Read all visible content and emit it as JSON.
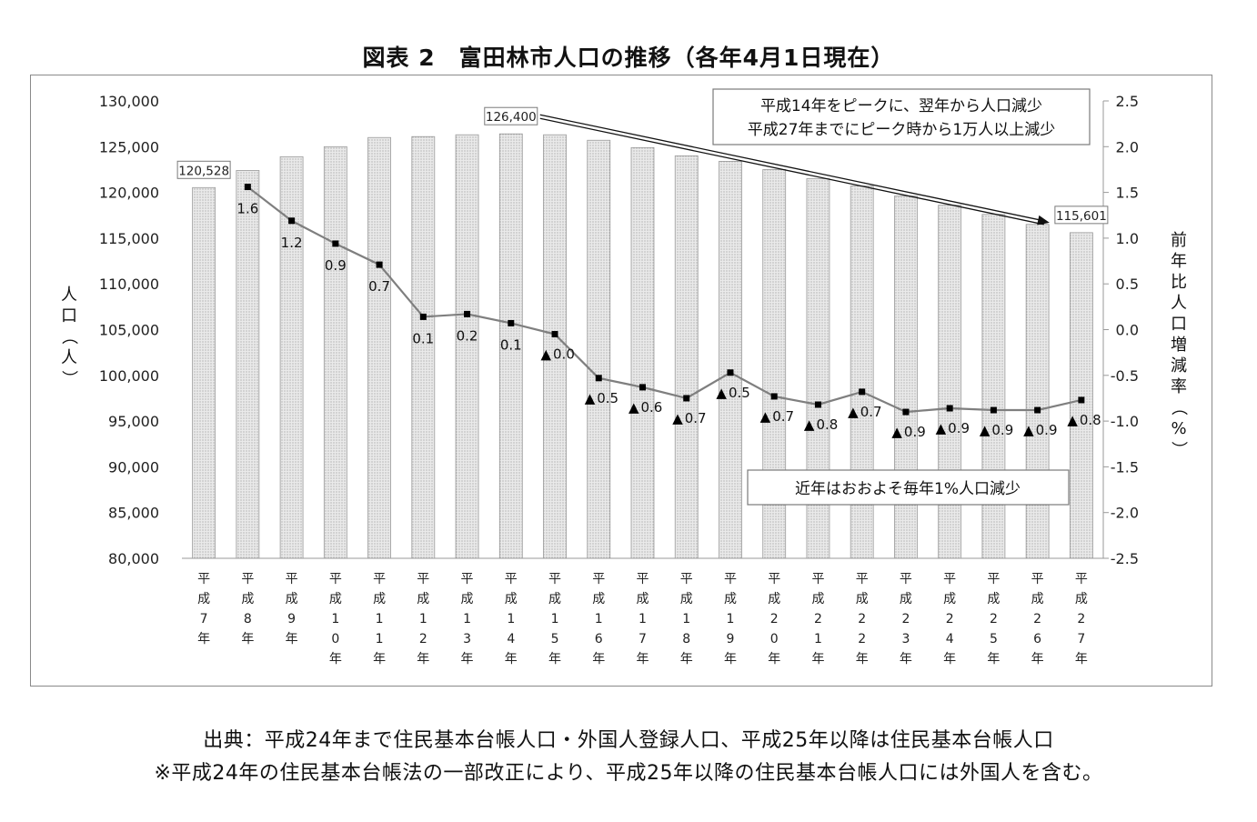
{
  "title": "図表 2　富田林市人口の推移（各年4月1日現在）",
  "footnotes": [
    "出典：平成24年まで住民基本台帳人口・外国人登録人口、平成25年以降は住民基本台帳人口",
    "※平成24年の住民基本台帳法の一部改正により、平成25年以降の住民基本台帳人口には外国人を含む。"
  ],
  "chart_data": {
    "type": "bar",
    "categories": [
      "平成7年",
      "平成8年",
      "平成9年",
      "平成10年",
      "平成11年",
      "平成12年",
      "平成13年",
      "平成14年",
      "平成15年",
      "平成16年",
      "平成17年",
      "平成18年",
      "平成19年",
      "平成20年",
      "平成21年",
      "平成22年",
      "平成23年",
      "平成24年",
      "平成25年",
      "平成26年",
      "平成27年"
    ],
    "category_label_chars": [
      [
        "平",
        "成",
        "7",
        "年"
      ],
      [
        "平",
        "成",
        "8",
        "年"
      ],
      [
        "平",
        "成",
        "9",
        "年"
      ],
      [
        "平",
        "成",
        "1",
        "0",
        "年"
      ],
      [
        "平",
        "成",
        "1",
        "1",
        "年"
      ],
      [
        "平",
        "成",
        "1",
        "2",
        "年"
      ],
      [
        "平",
        "成",
        "1",
        "3",
        "年"
      ],
      [
        "平",
        "成",
        "1",
        "4",
        "年"
      ],
      [
        "平",
        "成",
        "1",
        "5",
        "年"
      ],
      [
        "平",
        "成",
        "1",
        "6",
        "年"
      ],
      [
        "平",
        "成",
        "1",
        "7",
        "年"
      ],
      [
        "平",
        "成",
        "1",
        "8",
        "年"
      ],
      [
        "平",
        "成",
        "1",
        "9",
        "年"
      ],
      [
        "平",
        "成",
        "2",
        "0",
        "年"
      ],
      [
        "平",
        "成",
        "2",
        "1",
        "年"
      ],
      [
        "平",
        "成",
        "2",
        "2",
        "年"
      ],
      [
        "平",
        "成",
        "2",
        "3",
        "年"
      ],
      [
        "平",
        "成",
        "2",
        "4",
        "年"
      ],
      [
        "平",
        "成",
        "2",
        "5",
        "年"
      ],
      [
        "平",
        "成",
        "2",
        "6",
        "年"
      ],
      [
        "平",
        "成",
        "2",
        "7",
        "年"
      ]
    ],
    "series": [
      {
        "axis": "left",
        "kind": "bar",
        "values": [
          120528,
          122400,
          123900,
          125000,
          126000,
          126100,
          126300,
          126400,
          126300,
          125700,
          124900,
          124000,
          123400,
          122500,
          121500,
          120700,
          119600,
          118600,
          117600,
          116500,
          115601
        ]
      },
      {
        "axis": "right",
        "kind": "line",
        "values": [
          null,
          1.56,
          1.19,
          0.94,
          0.71,
          0.14,
          0.17,
          0.07,
          -0.05,
          -0.53,
          -0.63,
          -0.75,
          -0.47,
          -0.73,
          -0.82,
          -0.68,
          -0.9,
          -0.86,
          -0.88,
          -0.88,
          -0.77
        ],
        "data_labels": [
          null,
          "1.6",
          "1.2",
          "0.9",
          "0.7",
          "0.1",
          "0.2",
          "0.1",
          "0.0",
          "0.5",
          "0.6",
          "0.7",
          "0.5",
          "0.7",
          "0.8",
          "0.7",
          "0.9",
          "0.9",
          "0.9",
          "0.9",
          "0.8"
        ],
        "negative_marker": "▲"
      }
    ],
    "ylabel_left": "人口（人）",
    "ylabel_right": "前年比人口増減率（%）",
    "ylim_left": [
      80000,
      130000
    ],
    "yticks_left": [
      "80,000",
      "85,000",
      "90,000",
      "95,000",
      "100,000",
      "105,000",
      "110,000",
      "115,000",
      "120,000",
      "125,000",
      "130,000"
    ],
    "ylim_right": [
      -2.5,
      2.5
    ],
    "yticks_right": [
      "-2.5",
      "-2.0",
      "-1.5",
      "-1.0",
      "-0.5",
      "0.0",
      "0.5",
      "1.0",
      "1.5",
      "2.0",
      "2.5"
    ],
    "value_callouts": [
      {
        "index": 0,
        "text": "120,528"
      },
      {
        "index": 7,
        "text": "126,400"
      },
      {
        "index": 20,
        "text": "115,601"
      }
    ],
    "annotations": [
      "平成14年をピークに、翌年から人口減少",
      "平成27年までにピーク時から1万人以上減少",
      "近年はおおよそ毎年1%人口減少"
    ],
    "grid": false,
    "legend": "none",
    "colors": {
      "bar_fill": "#e6e6e6",
      "bar_dot": "#8c8c8c",
      "line": "#7f7f7f",
      "marker": "#000000",
      "axis": "#9a9a9a"
    }
  }
}
